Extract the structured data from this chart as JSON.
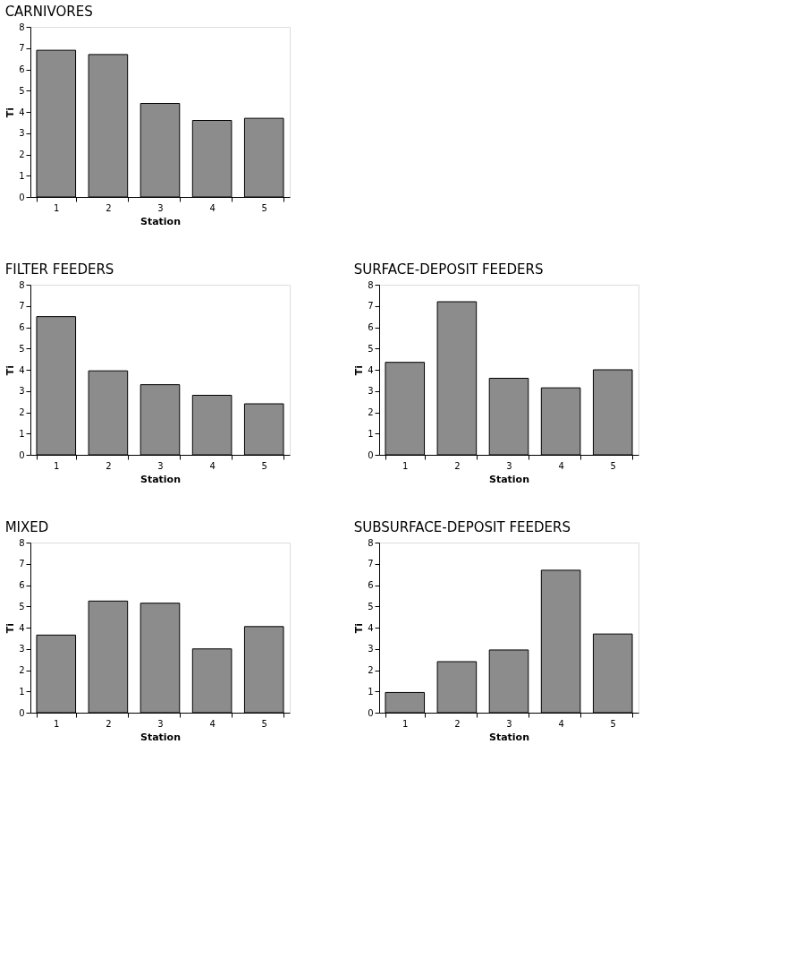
{
  "chart_data": [
    {
      "type": "bar",
      "title": "CARNIVORES",
      "xlabel": "Station",
      "ylabel": "Ti",
      "categories": [
        "1",
        "2",
        "3",
        "4",
        "5"
      ],
      "values": [
        6.9,
        6.7,
        4.4,
        3.6,
        3.7
      ],
      "color": "#8c8c8c",
      "ylim": [
        0,
        8
      ],
      "yticks": [
        0,
        1,
        2,
        3,
        4,
        5,
        6,
        7,
        8
      ],
      "grid": false
    },
    {
      "type": "bar",
      "title": "FILTER FEEDERS",
      "xlabel": "Station",
      "ylabel": "Ti",
      "categories": [
        "1",
        "2",
        "3",
        "4",
        "5"
      ],
      "values": [
        6.5,
        3.95,
        3.3,
        2.8,
        2.4
      ],
      "color": "#8c8c8c",
      "ylim": [
        0,
        8
      ],
      "yticks": [
        0,
        1,
        2,
        3,
        4,
        5,
        6,
        7,
        8
      ],
      "grid": false
    },
    {
      "type": "bar",
      "title": "SURFACE-DEPOSIT FEEDERS",
      "xlabel": "Station",
      "ylabel": "Ti",
      "categories": [
        "1",
        "2",
        "3",
        "4",
        "5"
      ],
      "values": [
        4.35,
        7.2,
        3.6,
        3.15,
        4.0
      ],
      "color": "#8c8c8c",
      "ylim": [
        0,
        8
      ],
      "yticks": [
        0,
        1,
        2,
        3,
        4,
        5,
        6,
        7,
        8
      ],
      "grid": false
    },
    {
      "type": "bar",
      "title": "MIXED",
      "xlabel": "Station",
      "ylabel": "Ti",
      "categories": [
        "1",
        "2",
        "3",
        "4",
        "5"
      ],
      "values": [
        3.65,
        5.25,
        5.15,
        3.0,
        4.05
      ],
      "color": "#8c8c8c",
      "ylim": [
        0,
        8
      ],
      "yticks": [
        0,
        1,
        2,
        3,
        4,
        5,
        6,
        7,
        8
      ],
      "grid": false
    },
    {
      "type": "bar",
      "title": "SUBSURFACE-DEPOSIT FEEDERS",
      "xlabel": "Station",
      "ylabel": "Ti",
      "categories": [
        "1",
        "2",
        "3",
        "4",
        "5"
      ],
      "values": [
        0.95,
        2.4,
        2.95,
        6.7,
        3.7
      ],
      "color": "#8c8c8c",
      "ylim": [
        0,
        8
      ],
      "yticks": [
        0,
        1,
        2,
        3,
        4,
        5,
        6,
        7,
        8
      ],
      "grid": false
    }
  ]
}
